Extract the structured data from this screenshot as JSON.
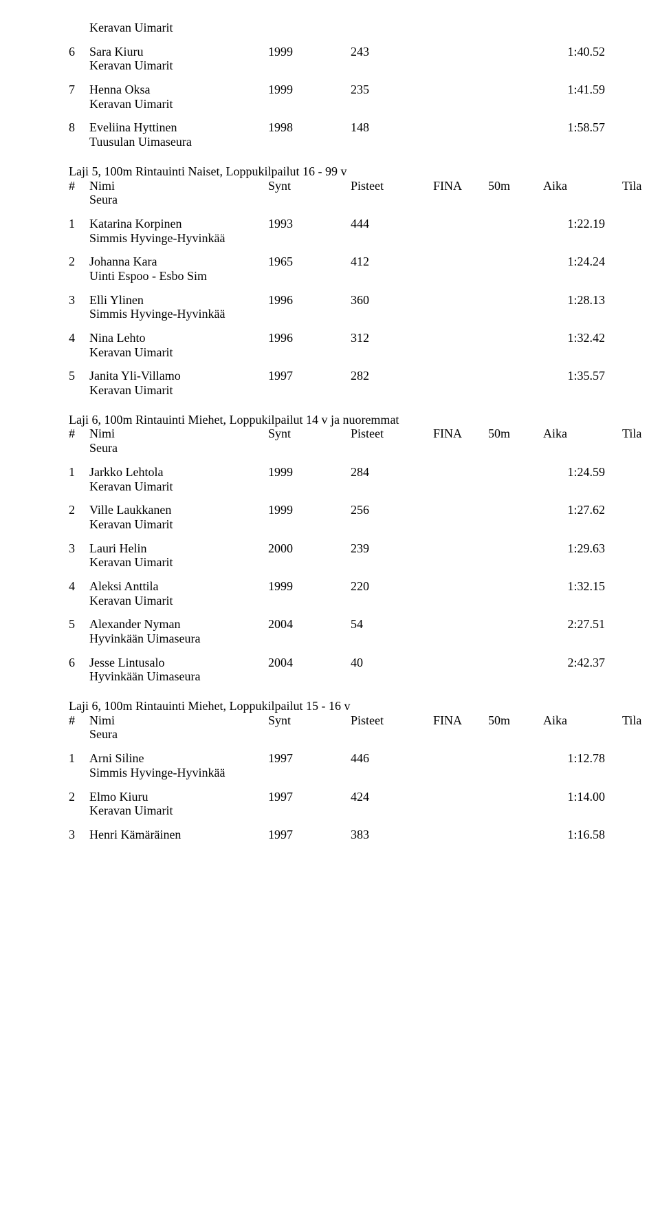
{
  "club0": "Keravan Uimarit",
  "e1": {
    "place": "6",
    "name": "Sara Kiuru",
    "year": "1999",
    "pts": "243",
    "time": "1:40.52",
    "club": "Keravan Uimarit"
  },
  "e2": {
    "place": "7",
    "name": "Henna Oksa",
    "year": "1999",
    "pts": "235",
    "time": "1:41.59",
    "club": "Keravan Uimarit"
  },
  "e3": {
    "place": "8",
    "name": "Eveliina Hyttinen",
    "year": "1998",
    "pts": "148",
    "time": "1:58.57",
    "club": "Tuusulan Uimaseura"
  },
  "h1": {
    "title": "Laji 5, 100m Rintauinti Naiset, Loppukilpailut 16 - 99 v",
    "hash": "#",
    "nimi": "Nimi",
    "synt": "Synt",
    "pisteet": "Pisteet",
    "fina": "FINA",
    "fifty": "50m",
    "aika": "Aika",
    "tila": "Tila",
    "seura": "Seura"
  },
  "e4": {
    "place": "1",
    "name": "Katarina Korpinen",
    "year": "1993",
    "pts": "444",
    "time": "1:22.19",
    "club": "Simmis Hyvinge-Hyvinkää"
  },
  "e5": {
    "place": "2",
    "name": "Johanna Kara",
    "year": "1965",
    "pts": "412",
    "time": "1:24.24",
    "club": "Uinti Espoo - Esbo Sim"
  },
  "e6": {
    "place": "3",
    "name": "Elli Ylinen",
    "year": "1996",
    "pts": "360",
    "time": "1:28.13",
    "club": "Simmis Hyvinge-Hyvinkää"
  },
  "e7": {
    "place": "4",
    "name": "Nina Lehto",
    "year": "1996",
    "pts": "312",
    "time": "1:32.42",
    "club": "Keravan Uimarit"
  },
  "e8": {
    "place": "5",
    "name": "Janita Yli-Villamo",
    "year": "1997",
    "pts": "282",
    "time": "1:35.57",
    "club": "Keravan Uimarit"
  },
  "h2": {
    "title": "Laji 6, 100m Rintauinti Miehet, Loppukilpailut 14 v ja nuoremmat",
    "hash": "#",
    "nimi": "Nimi",
    "synt": "Synt",
    "pisteet": "Pisteet",
    "fina": "FINA",
    "fifty": "50m",
    "aika": "Aika",
    "tila": "Tila",
    "seura": "Seura"
  },
  "e9": {
    "place": "1",
    "name": "Jarkko Lehtola",
    "year": "1999",
    "pts": "284",
    "time": "1:24.59",
    "club": "Keravan Uimarit"
  },
  "e10": {
    "place": "2",
    "name": "Ville Laukkanen",
    "year": "1999",
    "pts": "256",
    "time": "1:27.62",
    "club": "Keravan Uimarit"
  },
  "e11": {
    "place": "3",
    "name": "Lauri Helin",
    "year": "2000",
    "pts": "239",
    "time": "1:29.63",
    "club": "Keravan Uimarit"
  },
  "e12": {
    "place": "4",
    "name": "Aleksi Anttila",
    "year": "1999",
    "pts": "220",
    "time": "1:32.15",
    "club": "Keravan Uimarit"
  },
  "e13": {
    "place": "5",
    "name": "Alexander Nyman",
    "year": "2004",
    "pts": "54",
    "time": "2:27.51",
    "club": "Hyvinkään Uimaseura"
  },
  "e14": {
    "place": "6",
    "name": "Jesse Lintusalo",
    "year": "2004",
    "pts": "40",
    "time": "2:42.37",
    "club": "Hyvinkään Uimaseura"
  },
  "h3": {
    "title": "Laji 6, 100m Rintauinti Miehet, Loppukilpailut 15 - 16 v",
    "hash": "#",
    "nimi": "Nimi",
    "synt": "Synt",
    "pisteet": "Pisteet",
    "fina": "FINA",
    "fifty": "50m",
    "aika": "Aika",
    "tila": "Tila",
    "seura": "Seura"
  },
  "e15": {
    "place": "1",
    "name": "Arni Siline",
    "year": "1997",
    "pts": "446",
    "time": "1:12.78",
    "club": "Simmis Hyvinge-Hyvinkää"
  },
  "e16": {
    "place": "2",
    "name": "Elmo Kiuru",
    "year": "1997",
    "pts": "424",
    "time": "1:14.00",
    "club": "Keravan Uimarit"
  },
  "e17": {
    "place": "3",
    "name": "Henri Kämäräinen",
    "year": "1997",
    "pts": "383",
    "time": "1:16.58"
  }
}
